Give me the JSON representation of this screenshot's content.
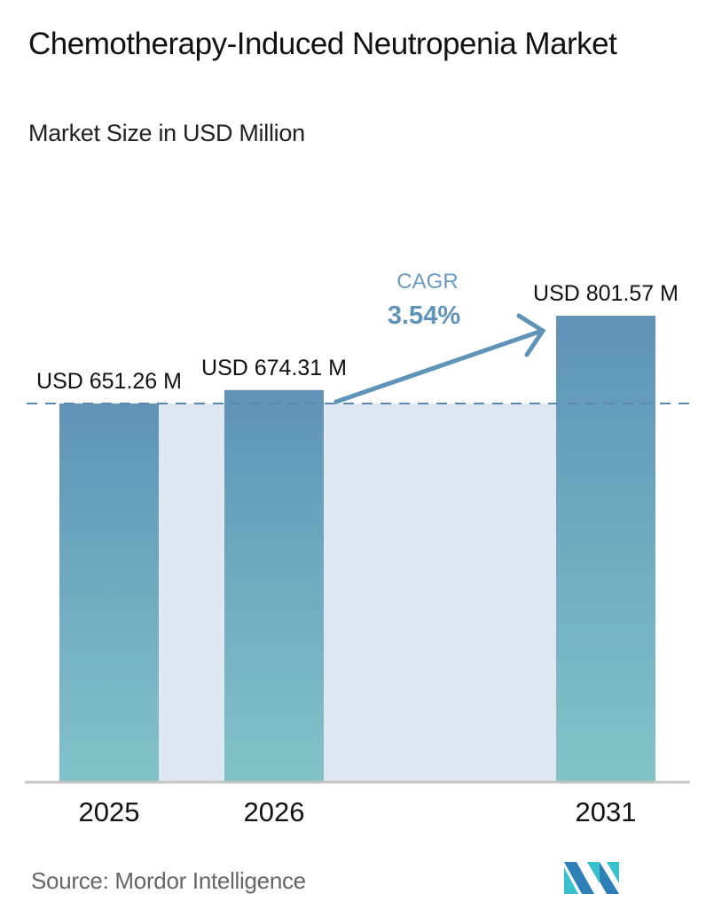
{
  "header": {
    "title": "Chemotherapy-Induced Neutropenia Market",
    "subtitle": "Market Size in USD Million"
  },
  "chart_data": {
    "type": "bar",
    "title": "Chemotherapy-Induced Neutropenia Market",
    "subtitle": "Market Size in USD Million",
    "categories": [
      "2025",
      "2026",
      "2031"
    ],
    "values": [
      651.26,
      674.31,
      801.57
    ],
    "data_labels": [
      "USD 651.26 M",
      "USD 674.31 M",
      "USD 801.57 M"
    ],
    "unit": "USD Million",
    "xlabel": "",
    "ylabel": "",
    "grid": false,
    "annotation": {
      "label": "CAGR",
      "value": "3.54%"
    },
    "reference_line": {
      "style": "dashed",
      "at_value": 651.26
    }
  },
  "annotation": {
    "cagr_label": "CAGR",
    "cagr_value": "3.54%"
  },
  "footer": {
    "source": "Source:  Mordor Intelligence",
    "logo": "mordor-intelligence-logo"
  },
  "colors": {
    "bar_top": "#5f93b8",
    "bar_bottom": "#82c3c9",
    "band": "#dfe8f0",
    "dashed_line": "#5d88ad",
    "arrow": "#5f93b8",
    "cagr_text": "#5f93b8",
    "axis": "#c4c4c4",
    "logo_dark": "#2e7fb8",
    "logo_light": "#38c0cc"
  }
}
